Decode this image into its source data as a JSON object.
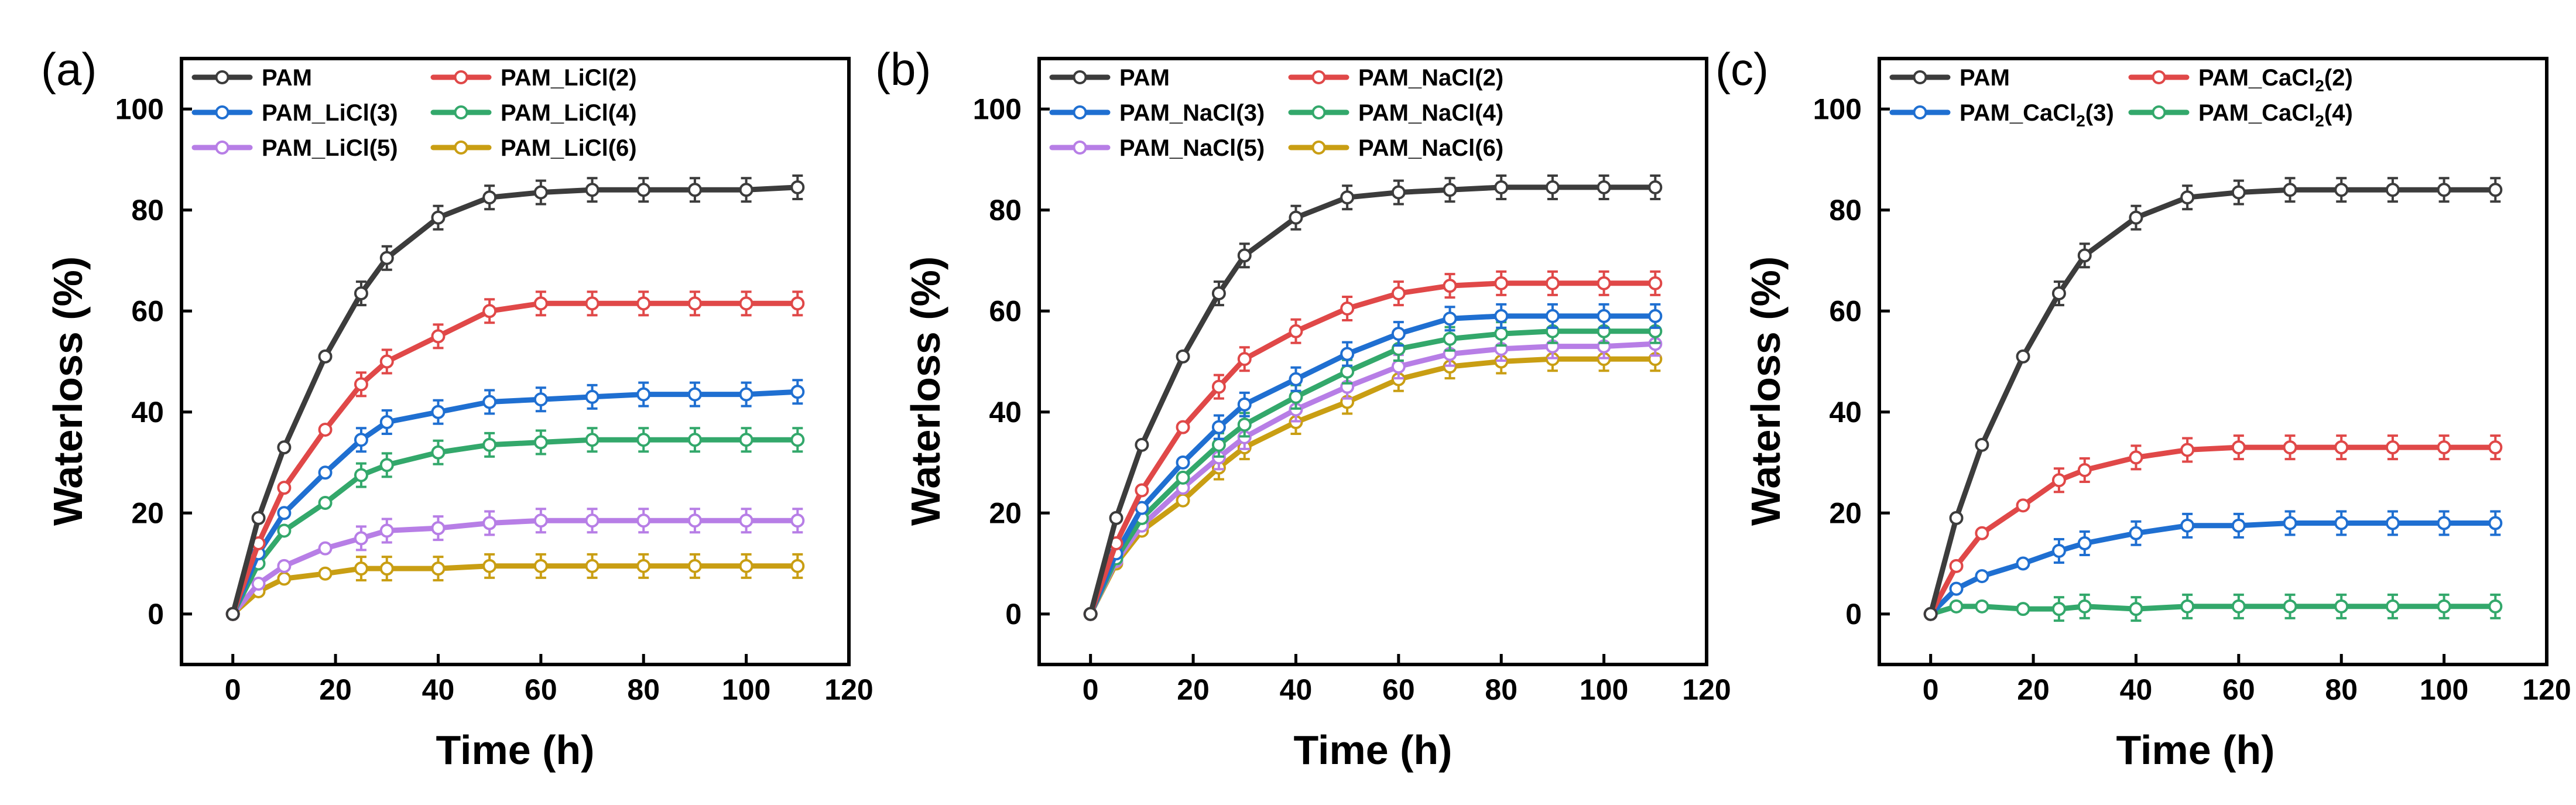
{
  "chart_data": [
    {
      "panel_label": "(a)",
      "type": "line",
      "xlabel": "Time (h)",
      "ylabel": "Waterloss (%)",
      "xlim": [
        -10,
        120
      ],
      "ylim": [
        -10,
        110
      ],
      "xticks": [
        0,
        20,
        40,
        60,
        80,
        100,
        120
      ],
      "yticks": [
        0,
        20,
        40,
        60,
        80,
        100
      ],
      "x": [
        0,
        5,
        10,
        18,
        25,
        30,
        40,
        50,
        60,
        70,
        80,
        90,
        100,
        110
      ],
      "legend_position": "top-left",
      "series": [
        {
          "name": "PAM",
          "color": "#3c3c3c",
          "values": [
            0,
            19,
            33,
            51,
            63.5,
            70.5,
            78.5,
            82.5,
            83.5,
            84,
            84,
            84,
            84,
            84.5
          ]
        },
        {
          "name": "PAM_LiCl(2)",
          "color": "#e04848",
          "values": [
            0,
            14,
            25,
            36.5,
            45.5,
            50,
            55,
            60,
            61.5,
            61.5,
            61.5,
            61.5,
            61.5,
            61.5
          ]
        },
        {
          "name": "PAM_LiCl(3)",
          "color": "#1f6fd1",
          "values": [
            0,
            12,
            20,
            28,
            34.5,
            38,
            40,
            42,
            42.5,
            43,
            43.5,
            43.5,
            43.5,
            44
          ]
        },
        {
          "name": "PAM_LiCl(4)",
          "color": "#33a86b",
          "values": [
            0,
            10,
            16.5,
            22,
            27.5,
            29.5,
            32,
            33.5,
            34,
            34.5,
            34.5,
            34.5,
            34.5,
            34.5
          ]
        },
        {
          "name": "PAM_LiCl(5)",
          "color": "#b77ee6",
          "values": [
            0,
            6,
            9.5,
            13,
            15,
            16.5,
            17,
            18,
            18.5,
            18.5,
            18.5,
            18.5,
            18.5,
            18.5
          ]
        },
        {
          "name": "PAM_LiCl(6)",
          "color": "#c99e13",
          "values": [
            0,
            4.5,
            7,
            8,
            9,
            9,
            9,
            9.5,
            9.5,
            9.5,
            9.5,
            9.5,
            9.5,
            9.5
          ]
        }
      ]
    },
    {
      "panel_label": "(b)",
      "type": "line",
      "xlabel": "Time (h)",
      "ylabel": "Waterloss (%)",
      "xlim": [
        -10,
        120
      ],
      "ylim": [
        -10,
        110
      ],
      "xticks": [
        0,
        20,
        40,
        60,
        80,
        100,
        120
      ],
      "yticks": [
        0,
        20,
        40,
        60,
        80,
        100
      ],
      "x": [
        0,
        5,
        10,
        18,
        25,
        30,
        40,
        50,
        60,
        70,
        80,
        90,
        100,
        110
      ],
      "legend_position": "top-left",
      "series": [
        {
          "name": "PAM",
          "color": "#3c3c3c",
          "values": [
            0,
            19,
            33.5,
            51,
            63.5,
            71,
            78.5,
            82.5,
            83.5,
            84,
            84.5,
            84.5,
            84.5,
            84.5
          ]
        },
        {
          "name": "PAM_NaCl(2)",
          "color": "#e04848",
          "values": [
            0,
            14,
            24.5,
            37,
            45,
            50.5,
            56,
            60.5,
            63.5,
            65,
            65.5,
            65.5,
            65.5,
            65.5
          ]
        },
        {
          "name": "PAM_NaCl(3)",
          "color": "#1f6fd1",
          "values": [
            0,
            12,
            21,
            30,
            37,
            41.5,
            46.5,
            51.5,
            55.5,
            58.5,
            59,
            59,
            59,
            59
          ]
        },
        {
          "name": "PAM_NaCl(4)",
          "color": "#33a86b",
          "values": [
            0,
            11,
            19,
            27,
            33.5,
            37.5,
            43,
            48,
            52.5,
            54.5,
            55.5,
            56,
            56,
            56
          ]
        },
        {
          "name": "PAM_NaCl(5)",
          "color": "#b77ee6",
          "values": [
            0,
            10.5,
            17.5,
            25,
            31,
            35,
            40.5,
            45,
            49,
            51.5,
            52.5,
            53,
            53,
            53.5
          ]
        },
        {
          "name": "PAM_NaCl(6)",
          "color": "#c99e13",
          "values": [
            0,
            10,
            16.5,
            22.5,
            29,
            33,
            38,
            42,
            46.5,
            49,
            50,
            50.5,
            50.5,
            50.5
          ]
        }
      ]
    },
    {
      "panel_label": "(c)",
      "type": "line",
      "xlabel": "Time (h)",
      "ylabel": "Waterloss (%)",
      "xlim": [
        -10,
        120
      ],
      "ylim": [
        -10,
        110
      ],
      "xticks": [
        0,
        20,
        40,
        60,
        80,
        100,
        120
      ],
      "yticks": [
        0,
        20,
        40,
        60,
        80,
        100
      ],
      "x": [
        0,
        5,
        10,
        18,
        25,
        30,
        40,
        50,
        60,
        70,
        80,
        90,
        100,
        110
      ],
      "legend_position": "top-left",
      "series": [
        {
          "name": "PAM",
          "color": "#3c3c3c",
          "values": [
            0,
            19,
            33.5,
            51,
            63.5,
            71,
            78.5,
            82.5,
            83.5,
            84,
            84,
            84,
            84,
            84
          ]
        },
        {
          "name": "PAM_CaCl2(2)",
          "legend_main": "PAM_CaCl",
          "legend_sub": "2",
          "legend_tail": "(2)",
          "color": "#e04848",
          "values": [
            0,
            9.5,
            16,
            21.5,
            26.5,
            28.5,
            31,
            32.5,
            33,
            33,
            33,
            33,
            33,
            33
          ]
        },
        {
          "name": "PAM_CaCl2(3)",
          "legend_main": "PAM_CaCl",
          "legend_sub": "2",
          "legend_tail": "(3)",
          "color": "#1f6fd1",
          "values": [
            0,
            5,
            7.5,
            10,
            12.5,
            14,
            16,
            17.5,
            17.5,
            18,
            18,
            18,
            18,
            18
          ]
        },
        {
          "name": "PAM_CaCl2(4)",
          "legend_main": "PAM_CaCl",
          "legend_sub": "2",
          "legend_tail": "(4)",
          "color": "#33a86b",
          "values": [
            0,
            1.5,
            1.5,
            1,
            1,
            1.5,
            1,
            1.5,
            1.5,
            1.5,
            1.5,
            1.5,
            1.5,
            1.5
          ]
        }
      ]
    }
  ]
}
